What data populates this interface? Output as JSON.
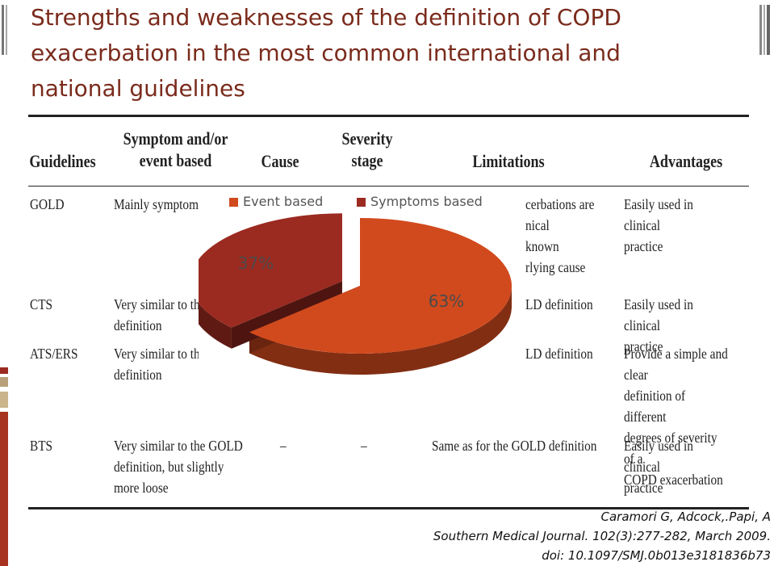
{
  "slide": {
    "title_lines": [
      "Strengths and weaknesses of the definition of COPD",
      "exacerbation in the most common international and",
      "national guidelines"
    ]
  },
  "table": {
    "headers": {
      "guidelines": "Guidelines",
      "symptom": "Symptom and/or\nevent based",
      "cause": "Cause",
      "severity": "Severity\nstage",
      "limitations": "Limitations",
      "advantages": "Advantages"
    },
    "rows": [
      {
        "guideline": "GOLD",
        "symptom": "Mainly symptom b",
        "cause": "",
        "severity": "",
        "limitations": "cerbations are\nnical\nknown\nrlying cause",
        "advantages": "Easily used in clinical\n   practice"
      },
      {
        "guideline": "CTS",
        "symptom": "Very similar to the\n   definition",
        "cause": "",
        "severity": "",
        "limitations": "LD definition",
        "advantages": "Easily used in clinical\n   practice"
      },
      {
        "guideline": "ATS/ERS",
        "symptom": "Very similar to the\n   definition",
        "cause": "",
        "severity": "",
        "limitations": "LD definition",
        "advantages": "Provide a simple and clear\n   definition of different\n   degrees of severity of a\n   COPD exacerbation"
      },
      {
        "guideline": "BTS",
        "symptom": "Very similar to the GOLD\n   definition, but slightly\n   more loose",
        "cause": "–",
        "severity": "–",
        "limitations": "Same as for the GOLD definition",
        "advantages": "Easily used in clinical\n   practice"
      }
    ]
  },
  "chart_data": {
    "type": "pie",
    "title": "",
    "legend_position": "top",
    "slices": [
      {
        "name": "Event based",
        "value": 63,
        "label": "63%",
        "color": "#d14a1e"
      },
      {
        "name": "Symptoms based",
        "value": 37,
        "label": "37%",
        "color": "#9b2a20"
      }
    ],
    "exploded": "Symptoms based",
    "style": "3d"
  },
  "citation": {
    "line1": "Caramori G, Adcock,.Papi, A",
    "line2": "Southern Medical Journal. 102(3):277-282, March 2009.",
    "line3": "doi: 10.1097/SMJ.0b013e3181836b73"
  }
}
